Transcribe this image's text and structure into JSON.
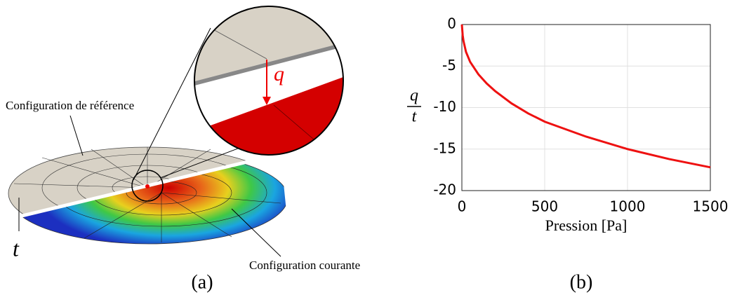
{
  "illustration": {
    "reference_label": "Configuration de référence",
    "current_label": "Configuration courante",
    "deflection_symbol": "q",
    "thickness_symbol": "t",
    "panel_label": "(a)"
  },
  "chart_data": {
    "type": "line",
    "panel_label": "(b)",
    "xlabel": "Pression [Pa]",
    "ylabel": {
      "numerator": "q",
      "denominator": "t"
    },
    "x": [
      0,
      5,
      10,
      25,
      50,
      100,
      150,
      200,
      300,
      400,
      500,
      750,
      1000,
      1250,
      1500
    ],
    "series": [
      {
        "name": "q/t",
        "color": "#ee1111",
        "values": [
          0,
          -1.3,
          -2.0,
          -3.3,
          -4.5,
          -6.0,
          -7.1,
          -8.0,
          -9.5,
          -10.7,
          -11.7,
          -13.5,
          -15.0,
          -16.2,
          -17.2
        ]
      }
    ],
    "xlim": [
      0,
      1500
    ],
    "ylim": [
      -20,
      0
    ],
    "xticks": [
      0,
      500,
      1000,
      1500
    ],
    "yticks": [
      0,
      -5,
      -10,
      -15,
      -20
    ],
    "grid": true
  }
}
